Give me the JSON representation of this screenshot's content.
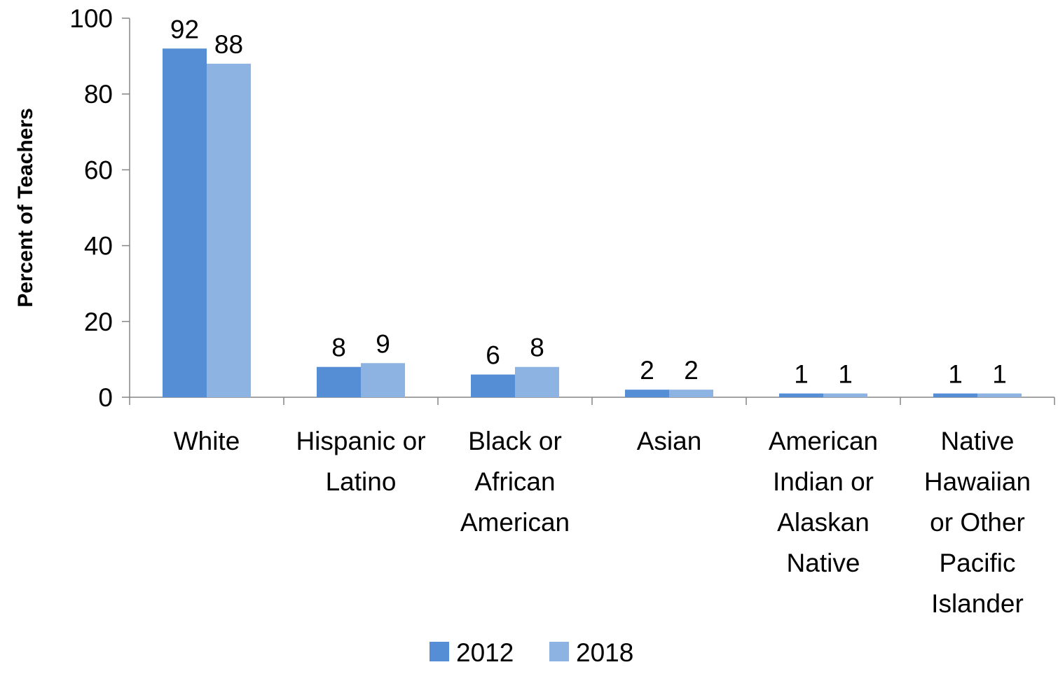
{
  "chart_data": {
    "type": "bar",
    "ylabel": "Percent of Teachers",
    "xlabel": "",
    "ylim": [
      0,
      100
    ],
    "yticks": [
      0,
      20,
      40,
      60,
      80,
      100
    ],
    "categories": [
      [
        "White"
      ],
      [
        "Hispanic or",
        "Latino"
      ],
      [
        "Black or",
        "African",
        "American"
      ],
      [
        "Asian"
      ],
      [
        "American",
        "Indian or",
        "Alaskan",
        "Native"
      ],
      [
        "Native",
        "Hawaiian",
        "or Other",
        "Pacific",
        "Islander"
      ]
    ],
    "series": [
      {
        "name": "2012",
        "color": "#558ed5",
        "values": [
          92,
          8,
          6,
          2,
          1,
          1
        ]
      },
      {
        "name": "2018",
        "color": "#8db3e2",
        "values": [
          88,
          9,
          8,
          2,
          1,
          1
        ]
      }
    ],
    "data_labels": true,
    "grid": false,
    "legend_position": "bottom"
  }
}
